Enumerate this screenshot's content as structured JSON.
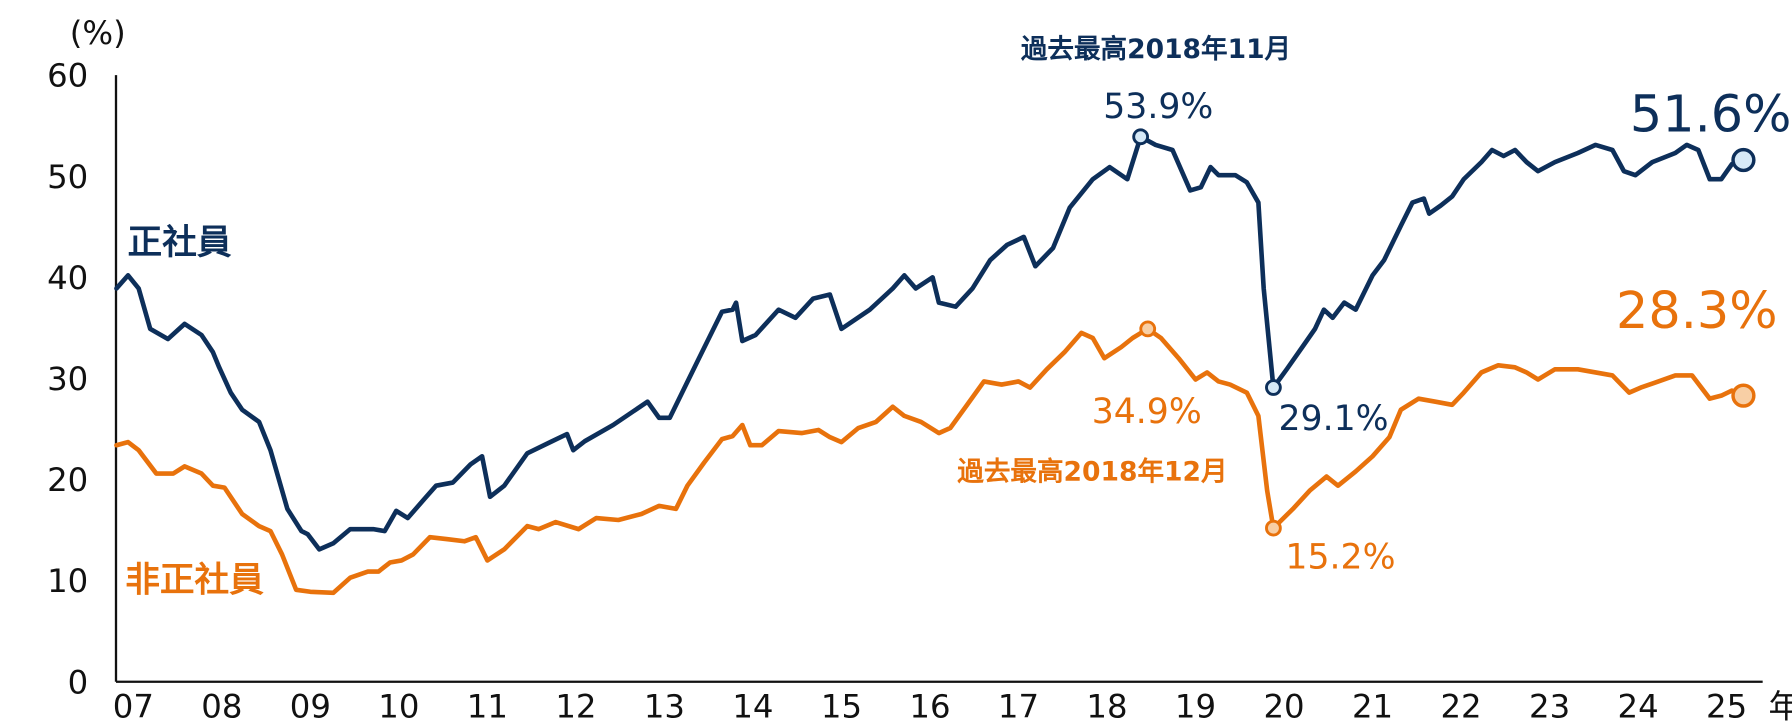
{
  "chart_data": {
    "type": "line",
    "title": "",
    "ylabel": "(%)",
    "xlabel": "年",
    "ylim": [
      0,
      60
    ],
    "xlim": [
      2007.3,
      2025.7
    ],
    "grid": false,
    "yticks": [
      "0",
      "10",
      "20",
      "30",
      "40",
      "50",
      "60"
    ],
    "xticks": [
      "07",
      "08",
      "09",
      "10",
      "11",
      "12",
      "13",
      "14",
      "15",
      "16",
      "17",
      "18",
      "19",
      "20",
      "21",
      "22",
      "23",
      "24",
      "25"
    ],
    "colors": {
      "regular": "#0d2f5a",
      "nonregular": "#e8720c"
    },
    "series": [
      {
        "name": "正社員",
        "color": "#0d2f5a",
        "points": [
          [
            2007.31,
            38.9
          ],
          [
            2007.44,
            40.2
          ],
          [
            2007.56,
            38.9
          ],
          [
            2007.69,
            34.9
          ],
          [
            2007.89,
            33.9
          ],
          [
            2008.08,
            35.4
          ],
          [
            2008.27,
            34.3
          ],
          [
            2008.4,
            32.6
          ],
          [
            2008.47,
            31.1
          ],
          [
            2008.6,
            28.6
          ],
          [
            2008.73,
            26.9
          ],
          [
            2008.92,
            25.7
          ],
          [
            2009.05,
            22.9
          ],
          [
            2009.24,
            17.1
          ],
          [
            2009.4,
            14.9
          ],
          [
            2009.47,
            14.6
          ],
          [
            2009.6,
            13.1
          ],
          [
            2009.76,
            13.7
          ],
          [
            2009.95,
            15.1
          ],
          [
            2010.21,
            15.1
          ],
          [
            2010.34,
            14.9
          ],
          [
            2010.47,
            16.9
          ],
          [
            2010.6,
            16.2
          ],
          [
            2010.79,
            18.1
          ],
          [
            2010.92,
            19.4
          ],
          [
            2011.11,
            19.7
          ],
          [
            2011.31,
            21.5
          ],
          [
            2011.44,
            22.3
          ],
          [
            2011.53,
            18.3
          ],
          [
            2011.69,
            19.4
          ],
          [
            2011.95,
            22.6
          ],
          [
            2012.21,
            23.7
          ],
          [
            2012.4,
            24.5
          ],
          [
            2012.47,
            22.9
          ],
          [
            2012.6,
            23.8
          ],
          [
            2012.92,
            25.4
          ],
          [
            2013.31,
            27.7
          ],
          [
            2013.44,
            26.1
          ],
          [
            2013.56,
            26.1
          ],
          [
            2013.89,
            32.0
          ],
          [
            2014.15,
            36.6
          ],
          [
            2014.27,
            36.8
          ],
          [
            2014.31,
            37.5
          ],
          [
            2014.38,
            33.7
          ],
          [
            2014.53,
            34.3
          ],
          [
            2014.79,
            36.8
          ],
          [
            2014.98,
            36.0
          ],
          [
            2015.18,
            37.9
          ],
          [
            2015.37,
            38.3
          ],
          [
            2015.5,
            34.9
          ],
          [
            2015.82,
            36.8
          ],
          [
            2016.08,
            38.9
          ],
          [
            2016.21,
            40.2
          ],
          [
            2016.34,
            38.9
          ],
          [
            2016.53,
            40.0
          ],
          [
            2016.6,
            37.5
          ],
          [
            2016.79,
            37.1
          ],
          [
            2016.98,
            38.9
          ],
          [
            2017.18,
            41.7
          ],
          [
            2017.37,
            43.2
          ],
          [
            2017.56,
            44.0
          ],
          [
            2017.69,
            41.1
          ],
          [
            2017.89,
            42.9
          ],
          [
            2018.08,
            46.9
          ],
          [
            2018.34,
            49.7
          ],
          [
            2018.53,
            50.9
          ],
          [
            2018.73,
            49.7
          ],
          [
            2018.88,
            53.9
          ],
          [
            2019.05,
            53.1
          ],
          [
            2019.24,
            52.6
          ],
          [
            2019.44,
            48.6
          ],
          [
            2019.56,
            48.9
          ],
          [
            2019.67,
            50.9
          ],
          [
            2019.76,
            50.1
          ],
          [
            2019.95,
            50.1
          ],
          [
            2020.08,
            49.4
          ],
          [
            2020.21,
            47.4
          ],
          [
            2020.27,
            38.9
          ],
          [
            2020.38,
            29.1
          ],
          [
            2020.53,
            30.9
          ],
          [
            2020.73,
            33.4
          ],
          [
            2020.85,
            34.9
          ],
          [
            2020.95,
            36.8
          ],
          [
            2021.05,
            36.0
          ],
          [
            2021.18,
            37.5
          ],
          [
            2021.31,
            36.8
          ],
          [
            2021.5,
            40.2
          ],
          [
            2021.63,
            41.7
          ],
          [
            2021.82,
            45.1
          ],
          [
            2021.95,
            47.4
          ],
          [
            2022.08,
            47.8
          ],
          [
            2022.14,
            46.3
          ],
          [
            2022.27,
            47.1
          ],
          [
            2022.4,
            48.0
          ],
          [
            2022.53,
            49.7
          ],
          [
            2022.73,
            51.4
          ],
          [
            2022.85,
            52.6
          ],
          [
            2022.98,
            52.0
          ],
          [
            2023.11,
            52.6
          ],
          [
            2023.24,
            51.4
          ],
          [
            2023.37,
            50.5
          ],
          [
            2023.56,
            51.4
          ],
          [
            2023.82,
            52.3
          ],
          [
            2024.02,
            53.1
          ],
          [
            2024.21,
            52.6
          ],
          [
            2024.34,
            50.5
          ],
          [
            2024.47,
            50.1
          ],
          [
            2024.66,
            51.4
          ],
          [
            2024.92,
            52.3
          ],
          [
            2025.05,
            53.1
          ],
          [
            2025.18,
            52.6
          ],
          [
            2025.31,
            49.7
          ],
          [
            2025.44,
            49.7
          ],
          [
            2025.56,
            51.2
          ],
          [
            2025.69,
            51.6
          ]
        ]
      },
      {
        "name": "非正社員",
        "color": "#e8720c",
        "points": [
          [
            2007.31,
            23.4
          ],
          [
            2007.44,
            23.7
          ],
          [
            2007.56,
            22.9
          ],
          [
            2007.76,
            20.6
          ],
          [
            2007.95,
            20.6
          ],
          [
            2008.08,
            21.3
          ],
          [
            2008.27,
            20.6
          ],
          [
            2008.4,
            19.4
          ],
          [
            2008.53,
            19.2
          ],
          [
            2008.73,
            16.6
          ],
          [
            2008.92,
            15.4
          ],
          [
            2009.05,
            14.9
          ],
          [
            2009.18,
            12.6
          ],
          [
            2009.34,
            9.1
          ],
          [
            2009.5,
            8.9
          ],
          [
            2009.76,
            8.8
          ],
          [
            2009.95,
            10.3
          ],
          [
            2010.15,
            10.9
          ],
          [
            2010.27,
            10.9
          ],
          [
            2010.4,
            11.8
          ],
          [
            2010.53,
            12.0
          ],
          [
            2010.66,
            12.6
          ],
          [
            2010.85,
            14.3
          ],
          [
            2011.05,
            14.1
          ],
          [
            2011.24,
            13.9
          ],
          [
            2011.37,
            14.3
          ],
          [
            2011.5,
            12.0
          ],
          [
            2011.69,
            13.1
          ],
          [
            2011.95,
            15.4
          ],
          [
            2012.08,
            15.1
          ],
          [
            2012.27,
            15.8
          ],
          [
            2012.53,
            15.1
          ],
          [
            2012.73,
            16.2
          ],
          [
            2012.98,
            16.0
          ],
          [
            2013.24,
            16.6
          ],
          [
            2013.44,
            17.4
          ],
          [
            2013.63,
            17.1
          ],
          [
            2013.76,
            19.4
          ],
          [
            2013.95,
            21.7
          ],
          [
            2014.15,
            24.0
          ],
          [
            2014.27,
            24.3
          ],
          [
            2014.38,
            25.4
          ],
          [
            2014.47,
            23.4
          ],
          [
            2014.6,
            23.4
          ],
          [
            2014.79,
            24.8
          ],
          [
            2015.05,
            24.6
          ],
          [
            2015.24,
            24.9
          ],
          [
            2015.37,
            24.2
          ],
          [
            2015.5,
            23.7
          ],
          [
            2015.69,
            25.1
          ],
          [
            2015.89,
            25.7
          ],
          [
            2016.08,
            27.2
          ],
          [
            2016.21,
            26.3
          ],
          [
            2016.4,
            25.7
          ],
          [
            2016.6,
            24.6
          ],
          [
            2016.73,
            25.1
          ],
          [
            2016.92,
            27.4
          ],
          [
            2017.11,
            29.7
          ],
          [
            2017.31,
            29.4
          ],
          [
            2017.5,
            29.7
          ],
          [
            2017.63,
            29.1
          ],
          [
            2017.82,
            30.9
          ],
          [
            2018.02,
            32.6
          ],
          [
            2018.21,
            34.5
          ],
          [
            2018.34,
            34.0
          ],
          [
            2018.47,
            32.0
          ],
          [
            2018.66,
            33.1
          ],
          [
            2018.79,
            34.0
          ],
          [
            2018.96,
            34.9
          ],
          [
            2019.11,
            34.0
          ],
          [
            2019.31,
            32.0
          ],
          [
            2019.5,
            29.9
          ],
          [
            2019.63,
            30.6
          ],
          [
            2019.76,
            29.7
          ],
          [
            2019.89,
            29.4
          ],
          [
            2020.08,
            28.6
          ],
          [
            2020.21,
            26.3
          ],
          [
            2020.31,
            18.9
          ],
          [
            2020.38,
            15.2
          ],
          [
            2020.6,
            17.1
          ],
          [
            2020.79,
            18.9
          ],
          [
            2020.98,
            20.3
          ],
          [
            2021.11,
            19.4
          ],
          [
            2021.31,
            20.8
          ],
          [
            2021.5,
            22.3
          ],
          [
            2021.69,
            24.2
          ],
          [
            2021.82,
            26.9
          ],
          [
            2022.02,
            28.0
          ],
          [
            2022.21,
            27.7
          ],
          [
            2022.4,
            27.4
          ],
          [
            2022.53,
            28.6
          ],
          [
            2022.73,
            30.6
          ],
          [
            2022.92,
            31.3
          ],
          [
            2023.11,
            31.1
          ],
          [
            2023.24,
            30.6
          ],
          [
            2023.37,
            29.9
          ],
          [
            2023.56,
            30.9
          ],
          [
            2023.82,
            30.9
          ],
          [
            2024.02,
            30.6
          ],
          [
            2024.21,
            30.3
          ],
          [
            2024.4,
            28.6
          ],
          [
            2024.53,
            29.1
          ],
          [
            2024.73,
            29.7
          ],
          [
            2024.92,
            30.3
          ],
          [
            2025.11,
            30.3
          ],
          [
            2025.31,
            28.0
          ],
          [
            2025.44,
            28.3
          ],
          [
            2025.56,
            28.8
          ],
          [
            2025.69,
            28.3
          ]
        ]
      }
    ],
    "annotations": {
      "regular_label": "正社員",
      "nonregular_label": "非正社員",
      "regular_peak_caption": "過去最高2018年11月",
      "regular_peak_value": "53.9%",
      "regular_trough_value": "29.1%",
      "regular_latest_value": "51.6%",
      "nonregular_peak_caption": "過去最高2018年12月",
      "nonregular_peak_value": "34.9%",
      "nonregular_trough_value": "15.2%",
      "nonregular_latest_value": "28.3%"
    },
    "markers": {
      "regular": [
        [
          2018.88,
          53.9
        ],
        [
          2020.38,
          29.1
        ],
        [
          2025.69,
          51.6
        ]
      ],
      "nonregular": [
        [
          2018.96,
          34.9
        ],
        [
          2020.38,
          15.2
        ],
        [
          2025.69,
          28.3
        ]
      ]
    }
  }
}
